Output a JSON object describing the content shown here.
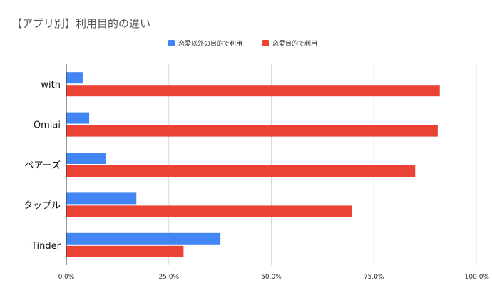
{
  "chart_data": {
    "type": "bar",
    "orientation": "horizontal",
    "title": "【アプリ別】利用目的の違い",
    "categories": [
      "with",
      "Omiai",
      "ペアーズ",
      "タップル",
      "Tinder"
    ],
    "series": [
      {
        "name": "恋愛以外の目的で利用",
        "color": "#4285f4",
        "values": [
          4.0,
          5.5,
          9.5,
          17.0,
          37.5
        ]
      },
      {
        "name": "恋愛目的で利用",
        "color": "#ea4335",
        "values": [
          91.0,
          90.5,
          85.0,
          69.5,
          28.5
        ]
      }
    ],
    "xlim": [
      0,
      100
    ],
    "xticks": [
      "0.0%",
      "25.0%",
      "50.0%",
      "75.0%",
      "100.0%"
    ],
    "xlabel": "",
    "ylabel": "",
    "grid": true,
    "legend_position": "top"
  }
}
